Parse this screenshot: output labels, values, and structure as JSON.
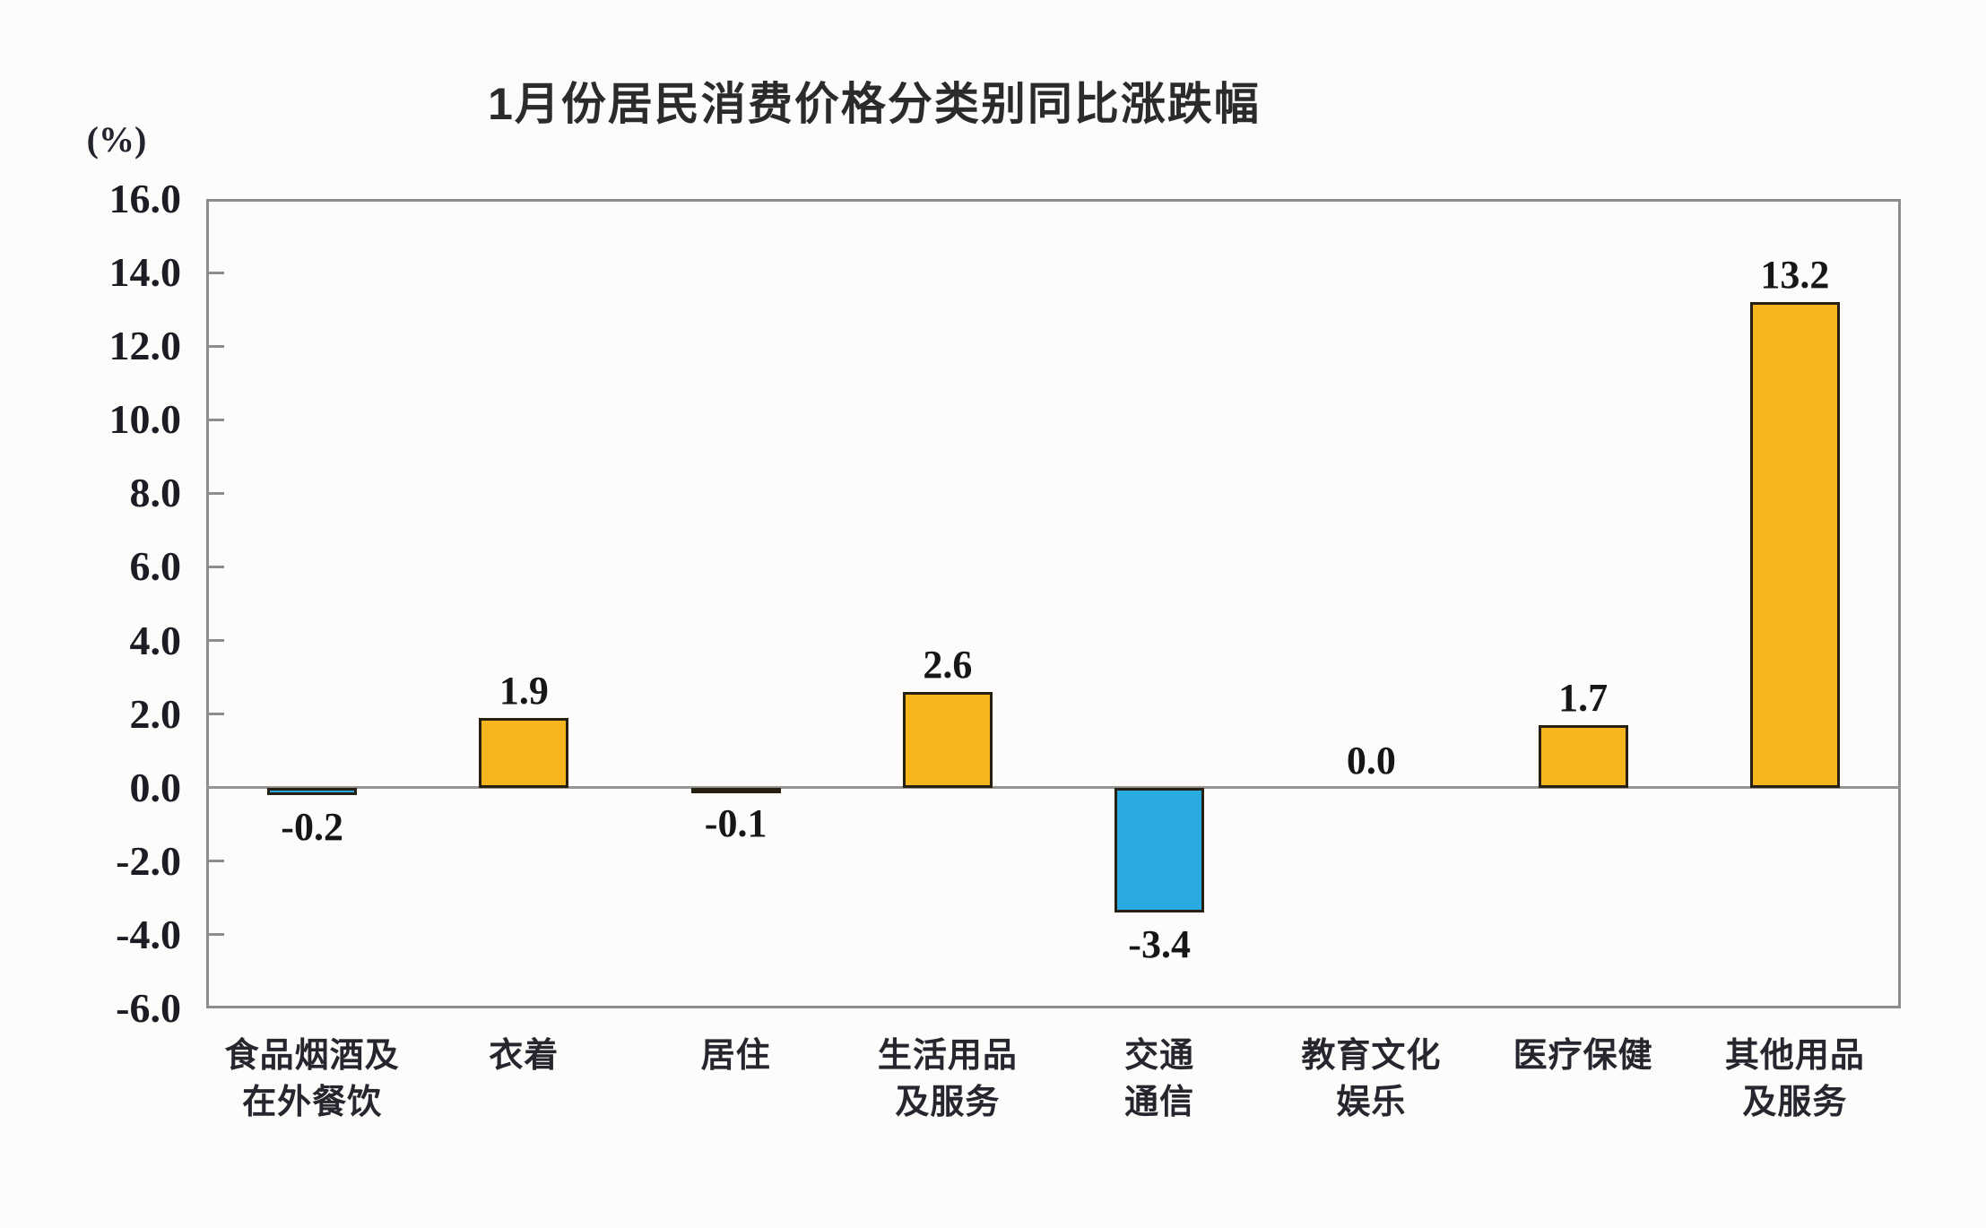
{
  "chart_data": {
    "type": "bar",
    "title": "1月份居民消费价格分类别同比涨跌幅",
    "unit_label": "(%)",
    "categories": [
      "食品烟酒及\n在外餐饮",
      "衣着",
      "居住",
      "生活用品\n及服务",
      "交通\n通信",
      "教育文化\n娱乐",
      "医疗保健",
      "其他用品\n及服务"
    ],
    "values": [
      -0.2,
      1.9,
      -0.1,
      2.6,
      -3.4,
      0.0,
      1.7,
      13.2
    ],
    "value_labels": [
      "-0.2",
      "1.9",
      "-0.1",
      "2.6",
      "-3.4",
      "0.0",
      "1.7",
      "13.2"
    ],
    "bar_colors": [
      "#29ABE2",
      "#F6B51D",
      "#29ABE2",
      "#F6B51D",
      "#29ABE2",
      null,
      "#F6B51D",
      "#F6B51D"
    ],
    "xlabel": "",
    "ylabel": "(%)",
    "ylim": [
      -6.0,
      16.0
    ],
    "ytick_step": 2.0,
    "ytick_labels": [
      "16.0",
      "14.0",
      "12.0",
      "10.0",
      "8.0",
      "6.0",
      "4.0",
      "2.0",
      "0.0",
      "-2.0",
      "-4.0",
      "-6.0"
    ],
    "grid": false,
    "legend_position": "none",
    "colors": {
      "positive_bar": "#F6B51D",
      "negative_bar": "#29ABE2",
      "bar_outline": "#272011",
      "plot_frame": "#8c8c8c",
      "zero_line": "#949494",
      "text": "#1c1c24",
      "background": "#FDFCFA"
    }
  }
}
